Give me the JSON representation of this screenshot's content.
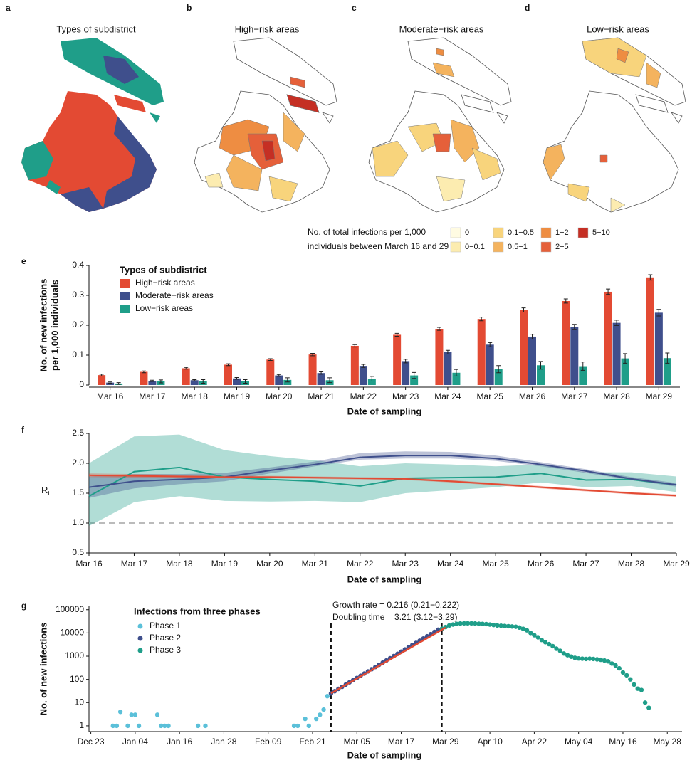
{
  "maps": {
    "panels": [
      {
        "label": "a",
        "title": "Types of subdistrict"
      },
      {
        "label": "b",
        "title": "High−risk areas"
      },
      {
        "label": "c",
        "title": "Moderate−risk areas"
      },
      {
        "label": "d",
        "title": "Low−risk areas"
      }
    ],
    "legend": {
      "title_lines": [
        "No. of total infections per 1,000",
        "individuals between March 16 and 29"
      ],
      "items": [
        {
          "label": "0",
          "color": "#fffbe2"
        },
        {
          "label": "0−0.1",
          "color": "#fcecb0"
        },
        {
          "label": "0.1−0.5",
          "color": "#f8d47c"
        },
        {
          "label": "0.5−1",
          "color": "#f4b35e"
        },
        {
          "label": "1−2",
          "color": "#ee8d42"
        },
        {
          "label": "2−5",
          "color": "#e5603a"
        },
        {
          "label": "5−10",
          "color": "#c52f24"
        }
      ]
    }
  },
  "chart_data": [
    {
      "type": "bar",
      "panel_label": "e",
      "y_label": [
        "No. of new infections",
        "per 1,000 individuals"
      ],
      "x_label": "Date of sampling",
      "legend_title": "Types of subdistrict",
      "categories": [
        "Mar 16",
        "Mar 17",
        "Mar 18",
        "Mar 19",
        "Mar 20",
        "Mar 21",
        "Mar 22",
        "Mar 23",
        "Mar 24",
        "Mar 25",
        "Mar 26",
        "Mar 27",
        "Mar 28",
        "Mar 29"
      ],
      "series": [
        {
          "name": "High−risk areas",
          "color": "#e34a33",
          "values": [
            0.033,
            0.044,
            0.056,
            0.068,
            0.085,
            0.102,
            0.131,
            0.168,
            0.188,
            0.221,
            0.251,
            0.281,
            0.312,
            0.36
          ],
          "errors": [
            0.003,
            0.003,
            0.003,
            0.003,
            0.003,
            0.004,
            0.004,
            0.005,
            0.005,
            0.006,
            0.007,
            0.007,
            0.009,
            0.009
          ]
        },
        {
          "name": "Moderate−risk areas",
          "color": "#3f4f8c",
          "values": [
            0.008,
            0.014,
            0.016,
            0.022,
            0.032,
            0.04,
            0.064,
            0.08,
            0.11,
            0.135,
            0.162,
            0.194,
            0.208,
            0.242
          ],
          "errors": [
            0.002,
            0.002,
            0.002,
            0.003,
            0.003,
            0.004,
            0.005,
            0.006,
            0.006,
            0.007,
            0.008,
            0.009,
            0.009,
            0.011
          ]
        },
        {
          "name": "Low−risk areas",
          "color": "#1f9e89",
          "values": [
            0.005,
            0.012,
            0.012,
            0.012,
            0.017,
            0.016,
            0.021,
            0.032,
            0.041,
            0.053,
            0.066,
            0.063,
            0.089,
            0.09
          ],
          "errors": [
            0.003,
            0.005,
            0.006,
            0.006,
            0.007,
            0.008,
            0.008,
            0.01,
            0.011,
            0.012,
            0.013,
            0.014,
            0.016,
            0.017
          ]
        }
      ],
      "ylim": [
        0,
        0.4
      ],
      "yticks": [
        0,
        0.1,
        0.2,
        0.3,
        0.4
      ]
    },
    {
      "type": "line",
      "panel_label": "f",
      "y_label": "R",
      "y_label_subscript": "t",
      "x_label": "Date of sampling",
      "categories": [
        "Mar 16",
        "Mar 17",
        "Mar 18",
        "Mar 19",
        "Mar 20",
        "Mar 21",
        "Mar 22",
        "Mar 23",
        "Mar 24",
        "Mar 25",
        "Mar 26",
        "Mar 27",
        "Mar 28",
        "Mar 29"
      ],
      "series": [
        {
          "color": "#1f9e89",
          "values": [
            1.45,
            1.86,
            1.93,
            1.77,
            1.73,
            1.7,
            1.62,
            1.75,
            1.76,
            1.77,
            1.83,
            1.72,
            1.73,
            1.64
          ],
          "lower": [
            0.95,
            1.35,
            1.45,
            1.37,
            1.36,
            1.37,
            1.35,
            1.5,
            1.55,
            1.6,
            1.68,
            1.6,
            1.62,
            1.52
          ],
          "upper": [
            2.0,
            2.45,
            2.48,
            2.22,
            2.12,
            2.05,
            1.95,
            2.0,
            1.98,
            1.95,
            1.98,
            1.85,
            1.85,
            1.78
          ]
        },
        {
          "color": "#3f4f8c",
          "values": [
            1.6,
            1.7,
            1.73,
            1.77,
            1.88,
            1.98,
            2.1,
            2.13,
            2.13,
            2.08,
            1.98,
            1.87,
            1.74,
            1.64
          ],
          "lower": [
            1.42,
            1.58,
            1.65,
            1.7,
            1.83,
            1.95,
            2.06,
            2.08,
            2.08,
            2.04,
            1.95,
            1.84,
            1.72,
            1.61
          ],
          "upper": [
            1.78,
            1.82,
            1.82,
            1.84,
            1.93,
            2.03,
            2.17,
            2.2,
            2.19,
            2.13,
            2.02,
            1.9,
            1.77,
            1.67
          ]
        },
        {
          "color": "#e34a33",
          "values": [
            1.8,
            1.79,
            1.78,
            1.77,
            1.77,
            1.76,
            1.75,
            1.74,
            1.7,
            1.65,
            1.6,
            1.55,
            1.5,
            1.46
          ],
          "lower": [
            1.77,
            1.76,
            1.75,
            1.75,
            1.75,
            1.74,
            1.73,
            1.72,
            1.68,
            1.63,
            1.58,
            1.53,
            1.48,
            1.44
          ],
          "upper": [
            1.83,
            1.82,
            1.81,
            1.79,
            1.79,
            1.78,
            1.77,
            1.76,
            1.72,
            1.67,
            1.62,
            1.57,
            1.52,
            1.48
          ]
        }
      ],
      "reference_line": 1,
      "ylim": [
        0.5,
        2.5
      ],
      "yticks": [
        0.5,
        {
          "value": 1,
          "label": "1.0"
        },
        1.5,
        {
          "value": 2,
          "label": "2.0"
        },
        2.5
      ]
    },
    {
      "type": "scatter",
      "panel_label": "g",
      "y_label": "No. of new infections",
      "x_label": "Date of sampling",
      "legend_title": "Infections from three phases",
      "y_scale": "log",
      "annotations": [
        "Growth rate = 0.216 (0.21−0.222)",
        "Doubling time = 3.21 (3.12−3.29)"
      ],
      "phase_boundaries": [
        65,
        95
      ],
      "series": [
        {
          "name": "Phase 1",
          "color": "#5bc0d9",
          "x": [
            6,
            7,
            8,
            10,
            11,
            12,
            13,
            18,
            19,
            20,
            21,
            29,
            31,
            55,
            56,
            58,
            59,
            61,
            62,
            63,
            64
          ],
          "values": [
            1,
            1,
            4,
            1,
            3,
            3,
            1,
            3,
            1,
            1,
            1,
            1,
            1,
            1,
            1,
            2,
            1,
            2,
            3,
            5,
            19
          ]
        },
        {
          "name": "Phase 2",
          "color": "#3f4f8c",
          "x": [
            65,
            66,
            67,
            68,
            69,
            70,
            71,
            72,
            73,
            74,
            75,
            76,
            77,
            78,
            79,
            80,
            81,
            82,
            83,
            84,
            85,
            86,
            87,
            88,
            89,
            90,
            91,
            92,
            93,
            94
          ],
          "values": [
            25,
            31,
            39,
            48,
            60,
            75,
            93,
            115,
            143,
            178,
            221,
            275,
            342,
            425,
            528,
            656,
            816,
            1014,
            1260,
            1566,
            1946,
            2418,
            3005,
            3734,
            4640,
            5766,
            7166,
            8905,
            11066,
            13752
          ]
        },
        {
          "name": "Phase 3",
          "color": "#1f9e89",
          "x": [
            95,
            96,
            97,
            98,
            99,
            100,
            101,
            102,
            103,
            104,
            105,
            106,
            107,
            108,
            109,
            110,
            111,
            112,
            113,
            114,
            115,
            116,
            117,
            118,
            119,
            120,
            121,
            122,
            123,
            124,
            125,
            126,
            127,
            128,
            129,
            130,
            131,
            132,
            133,
            134,
            135,
            136,
            137,
            138,
            139,
            140,
            141,
            142,
            143,
            144,
            145,
            146,
            147,
            148,
            149,
            150,
            151
          ],
          "values": [
            15000,
            18000,
            21000,
            23000,
            24500,
            25500,
            26000,
            26000,
            26000,
            25500,
            25000,
            24500,
            24000,
            23000,
            22000,
            21000,
            20500,
            20000,
            19500,
            19000,
            18500,
            17000,
            15000,
            13000,
            10000,
            8000,
            6500,
            5000,
            4000,
            3300,
            2700,
            2100,
            1700,
            1300,
            1100,
            950,
            850,
            800,
            780,
            760,
            780,
            760,
            730,
            700,
            650,
            600,
            480,
            400,
            300,
            200,
            150,
            100,
            60,
            40,
            35,
            10,
            6
          ]
        }
      ],
      "fit": {
        "color": "#e34a33",
        "x": [
          65,
          96
        ],
        "values": [
          25,
          17000
        ]
      },
      "xlim": [
        -0.5,
        160
      ],
      "xticks": [
        {
          "value": 0,
          "label": "Dec 23"
        },
        {
          "value": 12,
          "label": "Jan 04"
        },
        {
          "value": 24,
          "label": "Jan 16"
        },
        {
          "value": 36,
          "label": "Jan 28"
        },
        {
          "value": 48,
          "label": "Feb 09"
        },
        {
          "value": 60,
          "label": "Feb 21"
        },
        {
          "value": 72,
          "label": "Mar 05"
        },
        {
          "value": 84,
          "label": "Mar 17"
        },
        {
          "value": 96,
          "label": "Mar 29"
        },
        {
          "value": 108,
          "label": "Apr 10"
        },
        {
          "value": 120,
          "label": "Apr 22"
        },
        {
          "value": 132,
          "label": "May 04"
        },
        {
          "value": 144,
          "label": "May 16"
        },
        {
          "value": 156,
          "label": "May 28"
        }
      ],
      "ylim": [
        0.75,
        150000
      ],
      "yticks": [
        1,
        10,
        100,
        1000,
        10000,
        100000
      ]
    }
  ]
}
